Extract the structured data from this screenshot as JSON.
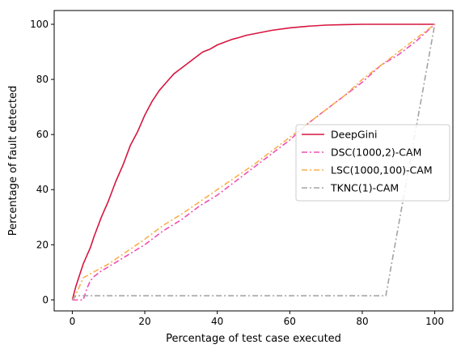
{
  "chart_data": {
    "type": "line",
    "title": "",
    "xlabel": "Percentage of test case executed",
    "ylabel": "Percentage of fault detected",
    "xlim": [
      -5,
      105
    ],
    "ylim": [
      -4,
      105
    ],
    "xticks": [
      0,
      20,
      40,
      60,
      80,
      100
    ],
    "yticks": [
      0,
      20,
      40,
      60,
      80,
      100
    ],
    "grid": false,
    "legend_position": "center-right",
    "series": [
      {
        "name": "DeepGini",
        "color": "#d6163f",
        "style": "solid",
        "x": [
          0,
          1,
          2,
          3,
          4,
          5,
          6,
          8,
          10,
          12,
          14,
          16,
          18,
          20,
          22,
          24,
          26,
          28,
          30,
          32,
          34,
          36,
          38,
          40,
          42,
          44,
          46,
          48,
          50,
          55,
          60,
          65,
          70,
          75,
          80,
          90,
          100
        ],
        "y": [
          0,
          5,
          9,
          13,
          16,
          19,
          23,
          30,
          36,
          43,
          49,
          56,
          61,
          67,
          72,
          76,
          79,
          82,
          84,
          86,
          88,
          90,
          91,
          92.5,
          93.5,
          94.5,
          95.2,
          96,
          96.5,
          97.8,
          98.7,
          99.3,
          99.7,
          99.9,
          100,
          100,
          100
        ]
      },
      {
        "name": "DSC(1000,2)-CAM",
        "color": "#f04fb3",
        "style": "dashdot",
        "x": [
          0,
          3,
          4,
          5,
          6,
          8,
          10,
          15,
          20,
          25,
          30,
          35,
          40,
          45,
          50,
          55,
          60,
          65,
          70,
          75,
          80,
          85,
          90,
          95,
          100
        ],
        "y": [
          0,
          0,
          4,
          7,
          8.5,
          10.5,
          12,
          16,
          20,
          25,
          29,
          34,
          38,
          43,
          48,
          53,
          58,
          64,
          69,
          74,
          79,
          85,
          89,
          94,
          100
        ]
      },
      {
        "name": "LSC(1000,100)-CAM",
        "color": "#f7b04d",
        "style": "dashdot",
        "x": [
          0,
          1,
          2,
          3,
          5,
          10,
          15,
          20,
          25,
          30,
          35,
          40,
          45,
          50,
          55,
          60,
          65,
          70,
          75,
          80,
          85,
          90,
          95,
          100
        ],
        "y": [
          0,
          2,
          5,
          8,
          9.5,
          13,
          17.5,
          22,
          27,
          31,
          35.5,
          40,
          44.5,
          49,
          54,
          59,
          64,
          69,
          74,
          80,
          85,
          90,
          95,
          100
        ]
      },
      {
        "name": "TKNC(1)-CAM",
        "color": "#a3a3a3",
        "style": "dashdot",
        "x": [
          0,
          1,
          86.5,
          100
        ],
        "y": [
          0,
          1.5,
          1.5,
          100
        ]
      }
    ]
  }
}
